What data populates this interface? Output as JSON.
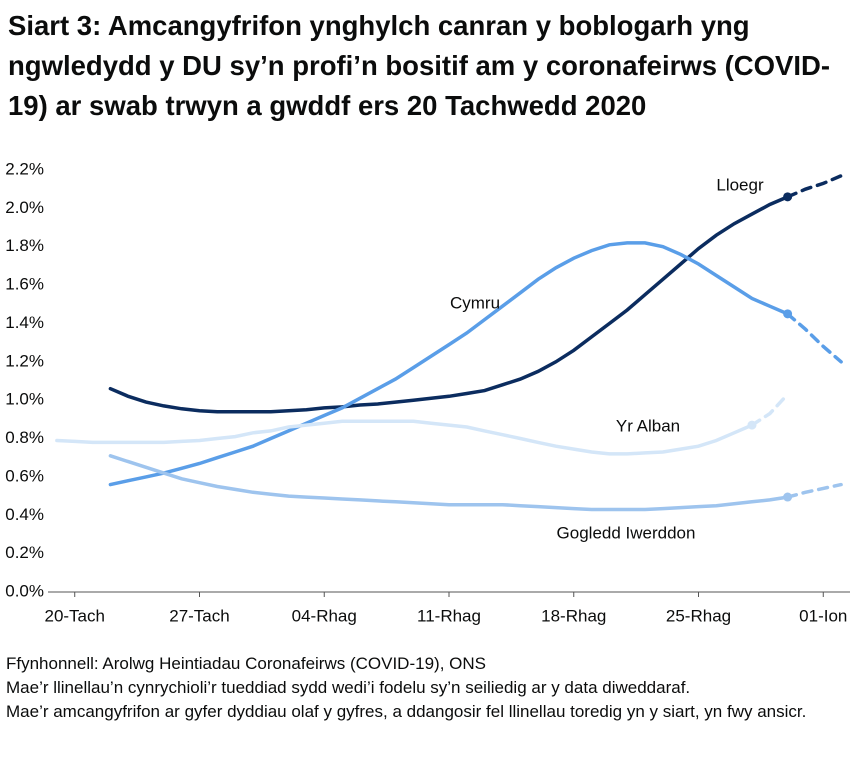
{
  "chart_data": {
    "type": "line",
    "title": "Siart 3: Amcangyfrifon ynghylch canran y boblogarh yng ngwledydd y DU sy’n profi’n bositif am y coronafeirws (COVID-19) ar swab trwyn a gwddf ers 20 Tachwedd 2020",
    "source": "Ffynhonnell: Arolwg Heintiadau Coronafeirws (COVID-19), ONS",
    "notes": [
      "Mae’r llinellau’n cynrychioli’r tueddiad sydd wedi’i fodelu sy’n seiliedig ar y data diweddaraf.",
      "Mae’r amcangyfrifon ar gyfer dyddiau olaf y gyfres, a ddangosir fel llinellau toredig yn y siart, yn fwy ansicr."
    ],
    "categories": [
      null,
      "20-Tach",
      null,
      null,
      null,
      null,
      null,
      null,
      "27-Tach",
      null,
      null,
      null,
      null,
      null,
      null,
      "04-Rhag",
      null,
      null,
      null,
      null,
      null,
      null,
      "11-Rhag",
      null,
      null,
      null,
      null,
      null,
      null,
      "18-Rhag",
      null,
      null,
      null,
      null,
      null,
      null,
      "25-Rhag",
      null,
      null,
      null,
      null,
      null,
      null,
      "01-Ion",
      null
    ],
    "ylim": [
      0,
      2.2
    ],
    "yticks": [
      {
        "value": 0,
        "label": "0.0%"
      },
      {
        "value": 0.2,
        "label": "0.2%"
      },
      {
        "value": 0.4,
        "label": "0.4%"
      },
      {
        "value": 0.6,
        "label": "0.6%"
      },
      {
        "value": 0.8,
        "label": "0.8%"
      },
      {
        "value": 1.0,
        "label": "1.0%"
      },
      {
        "value": 1.2,
        "label": "1.2%"
      },
      {
        "value": 1.4,
        "label": "1.4%"
      },
      {
        "value": 1.6,
        "label": "1.6%"
      },
      {
        "value": 1.8,
        "label": "1.8%"
      },
      {
        "value": 2.0,
        "label": "2.0%"
      },
      {
        "value": 2.2,
        "label": "2.2%"
      }
    ],
    "grid": false,
    "series": [
      {
        "name": "Lloegr",
        "color": "#0b2c5f",
        "dashed_from": 41,
        "values": [
          null,
          null,
          null,
          1.06,
          1.02,
          0.99,
          0.97,
          0.955,
          0.945,
          0.94,
          0.94,
          0.94,
          0.94,
          0.945,
          0.95,
          0.96,
          0.965,
          0.975,
          0.98,
          0.99,
          1.0,
          1.01,
          1.02,
          1.035,
          1.05,
          1.08,
          1.11,
          1.15,
          1.2,
          1.26,
          1.33,
          1.4,
          1.47,
          1.55,
          1.63,
          1.71,
          1.79,
          1.86,
          1.92,
          1.97,
          2.02,
          2.06,
          2.1,
          2.13,
          2.17
        ]
      },
      {
        "name": "Cymru",
        "color": "#5a9ee8",
        "dashed_from": 41,
        "values": [
          null,
          null,
          null,
          0.56,
          0.58,
          0.6,
          0.62,
          0.645,
          0.67,
          0.7,
          0.73,
          0.76,
          0.8,
          0.84,
          0.88,
          0.92,
          0.96,
          1.01,
          1.06,
          1.11,
          1.17,
          1.23,
          1.29,
          1.35,
          1.42,
          1.49,
          1.56,
          1.63,
          1.69,
          1.74,
          1.78,
          1.81,
          1.82,
          1.82,
          1.8,
          1.76,
          1.71,
          1.65,
          1.59,
          1.53,
          1.49,
          1.45,
          1.37,
          1.28,
          1.2
        ]
      },
      {
        "name": "Yr Alban",
        "color": "#d4e6f8",
        "dashed_from": 39,
        "values": [
          0.79,
          0.785,
          0.78,
          0.78,
          0.78,
          0.78,
          0.78,
          0.785,
          0.79,
          0.8,
          0.81,
          0.83,
          0.84,
          0.86,
          0.87,
          0.88,
          0.89,
          0.89,
          0.89,
          0.89,
          0.89,
          0.88,
          0.87,
          0.86,
          0.84,
          0.82,
          0.8,
          0.78,
          0.76,
          0.745,
          0.73,
          0.72,
          0.72,
          0.725,
          0.73,
          0.745,
          0.76,
          0.79,
          0.83,
          0.87,
          0.93,
          1.03,
          null,
          null,
          null
        ]
      },
      {
        "name": "Gogledd Iwerddon",
        "color": "#9ec4ee",
        "dashed_from": 41,
        "values": [
          null,
          null,
          null,
          0.71,
          0.68,
          0.65,
          0.62,
          0.59,
          0.57,
          0.55,
          0.535,
          0.52,
          0.51,
          0.5,
          0.495,
          0.49,
          0.485,
          0.48,
          0.475,
          0.47,
          0.465,
          0.46,
          0.455,
          0.455,
          0.455,
          0.455,
          0.45,
          0.445,
          0.44,
          0.435,
          0.43,
          0.43,
          0.43,
          0.43,
          0.435,
          0.44,
          0.445,
          0.45,
          0.46,
          0.47,
          0.48,
          0.495,
          0.52,
          0.54,
          0.56
        ]
      }
    ]
  }
}
